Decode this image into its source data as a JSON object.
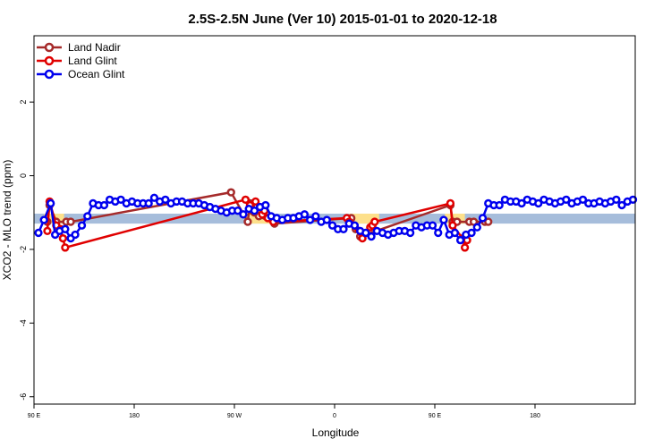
{
  "chart_data": {
    "type": "line",
    "title": "2.5S-2.5N June (Ver 10)   2015-01-01 to 2020-12-18",
    "xlabel": "Longitude",
    "ylabel": "XCO2 - MLO trend (ppm)",
    "xlim": [
      90,
      630
    ],
    "ylim": [
      -6.2,
      3.8
    ],
    "x_ticks": [
      {
        "value": 90,
        "label": "90 E"
      },
      {
        "value": 180,
        "label": "180"
      },
      {
        "value": 270,
        "label": "90 W"
      },
      {
        "value": 360,
        "label": "0"
      },
      {
        "value": 450,
        "label": "90 E"
      },
      {
        "value": 540,
        "label": "180"
      }
    ],
    "y_ticks": [
      {
        "value": 2,
        "label": "2"
      },
      {
        "value": 0,
        "label": "0"
      },
      {
        "value": -2,
        "label": "-2"
      },
      {
        "value": -4,
        "label": "-4"
      },
      {
        "value": -6,
        "label": "-6"
      }
    ],
    "grid": false,
    "legend_position": "top-left",
    "reference_band": {
      "y_low": -1.3,
      "y_high": -1.03,
      "color": "#a6bddb"
    },
    "highlight_bands": [
      {
        "x_start": 99,
        "x_end": 117,
        "y_low": -1.3,
        "y_high": -1.03,
        "color": "#fde08b"
      },
      {
        "x_start": 279,
        "x_end": 304,
        "y_low": -1.3,
        "y_high": -1.03,
        "color": "#fde08b"
      },
      {
        "x_start": 373,
        "x_end": 400,
        "y_low": -1.3,
        "y_high": -1.03,
        "color": "#fde08b"
      },
      {
        "x_start": 459,
        "x_end": 477,
        "y_low": -1.3,
        "y_high": -1.03,
        "color": "#fde08b"
      }
    ],
    "series": [
      {
        "name": "Land Nadir",
        "color": "#a52a2a",
        "x": [
          102,
          104,
          110,
          119,
          123,
          267,
          282,
          284,
          286,
          288,
          290,
          292,
          306,
          375,
          379,
          383,
          464,
          466,
          470,
          481,
          485,
          495,
          498
        ],
        "y": [
          -1.25,
          -0.8,
          -1.25,
          -1.25,
          -1.25,
          -0.45,
          -1.25,
          -0.75,
          -0.95,
          -1.0,
          -0.85,
          -1.1,
          -1.3,
          -1.15,
          -1.45,
          -1.65,
          -0.8,
          -1.25,
          -1.25,
          -1.25,
          -1.25,
          -1.25,
          -1.25
        ]
      },
      {
        "name": "Land Glint",
        "color": "#e00000",
        "x": [
          102,
          104,
          110,
          114,
          116,
          118,
          280,
          284,
          289,
          293,
          295,
          297,
          300,
          305,
          371,
          373,
          385,
          392,
          394,
          396,
          464,
          466,
          475,
          477,
          479
        ],
        "y": [
          -1.5,
          -0.7,
          -1.35,
          -1.45,
          -1.7,
          -1.95,
          -0.65,
          -0.8,
          -0.7,
          -0.85,
          -1.05,
          -0.95,
          -1.15,
          -1.25,
          -1.15,
          -1.25,
          -1.7,
          -1.4,
          -1.35,
          -1.25,
          -0.75,
          -1.35,
          -1.7,
          -1.95,
          -1.75
        ]
      },
      {
        "name": "Ocean Glint",
        "color": "#0000ee",
        "x": [
          94,
          99,
          105,
          109,
          113,
          118,
          123,
          127,
          133,
          138,
          143,
          148,
          153,
          158,
          163,
          168,
          173,
          178,
          183,
          188,
          193,
          198,
          203,
          208,
          213,
          218,
          223,
          228,
          233,
          238,
          243,
          248,
          253,
          258,
          263,
          268,
          273,
          278,
          283,
          288,
          293,
          298,
          303,
          308,
          313,
          318,
          323,
          328,
          333,
          338,
          343,
          348,
          353,
          358,
          363,
          368,
          373,
          378,
          383,
          388,
          393,
          398,
          403,
          408,
          413,
          418,
          423,
          428,
          433,
          438,
          443,
          448,
          453,
          458,
          463,
          468,
          473,
          478,
          483,
          488,
          493,
          498,
          503,
          508,
          513,
          518,
          523,
          528,
          533,
          538,
          543,
          548,
          553,
          558,
          563,
          568,
          573,
          578,
          583,
          588,
          593,
          598,
          603,
          608,
          613,
          618,
          623,
          628
        ],
        "y": [
          -1.55,
          -1.2,
          -0.75,
          -1.6,
          -1.5,
          -1.45,
          -1.7,
          -1.6,
          -1.35,
          -1.1,
          -0.75,
          -0.8,
          -0.8,
          -0.65,
          -0.7,
          -0.65,
          -0.75,
          -0.7,
          -0.75,
          -0.75,
          -0.75,
          -0.6,
          -0.7,
          -0.65,
          -0.75,
          -0.7,
          -0.7,
          -0.75,
          -0.75,
          -0.75,
          -0.8,
          -0.85,
          -0.9,
          -0.95,
          -1.0,
          -0.95,
          -0.95,
          -1.05,
          -0.9,
          -0.95,
          -0.85,
          -0.8,
          -1.1,
          -1.15,
          -1.2,
          -1.15,
          -1.15,
          -1.1,
          -1.05,
          -1.2,
          -1.1,
          -1.25,
          -1.2,
          -1.35,
          -1.45,
          -1.45,
          -1.3,
          -1.35,
          -1.5,
          -1.55,
          -1.65,
          -1.5,
          -1.55,
          -1.6,
          -1.55,
          -1.5,
          -1.5,
          -1.55,
          -1.35,
          -1.4,
          -1.35,
          -1.35,
          -1.55,
          -1.2,
          -1.6,
          -1.55,
          -1.75,
          -1.6,
          -1.55,
          -1.4,
          -1.15,
          -0.75,
          -0.8,
          -0.8,
          -0.65,
          -0.7,
          -0.7,
          -0.75,
          -0.65,
          -0.7,
          -0.75,
          -0.65,
          -0.7,
          -0.75,
          -0.7,
          -0.65,
          -0.75,
          -0.7,
          -0.65,
          -0.75,
          -0.75,
          -0.7,
          -0.75,
          -0.7,
          -0.65,
          -0.8,
          -0.7,
          -0.65
        ]
      }
    ]
  }
}
